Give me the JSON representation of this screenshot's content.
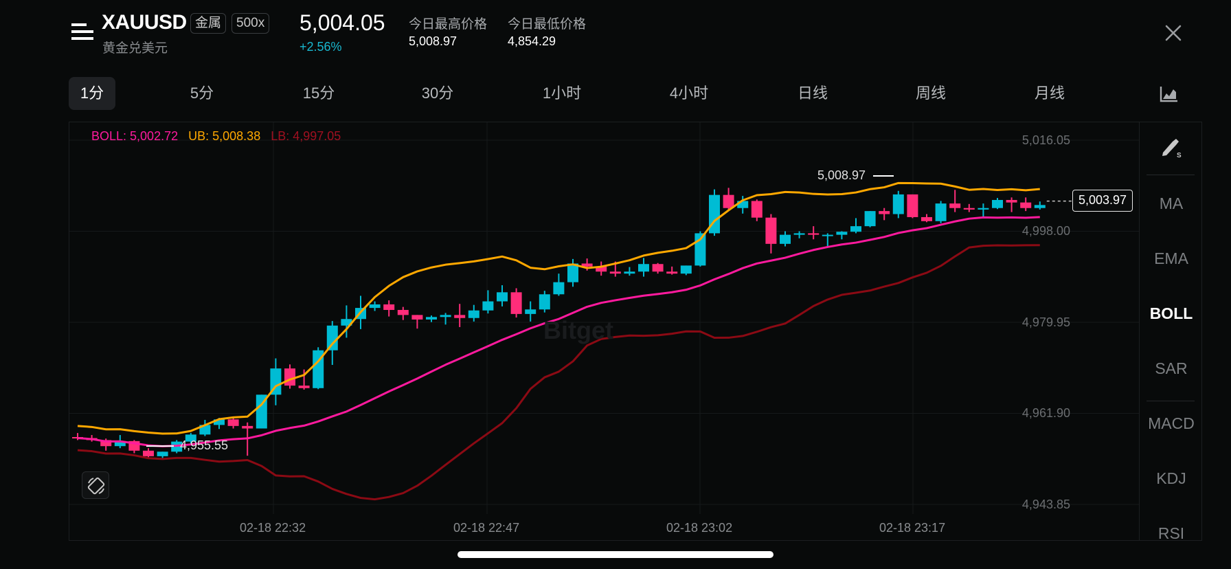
{
  "header": {
    "symbol": "XAUUSD",
    "tags": [
      "金属",
      "500x"
    ],
    "subname": "黄金兑美元",
    "last_price": "5,004.05",
    "change_pct": "+2.56%",
    "stats": [
      {
        "label": "今日最高价格",
        "value": "5,008.97"
      },
      {
        "label": "今日最低价格",
        "value": "4,854.29"
      }
    ]
  },
  "tabs": [
    {
      "label": "1分",
      "active": true
    },
    {
      "label": "5分"
    },
    {
      "label": "15分"
    },
    {
      "label": "30分"
    },
    {
      "label": "1小时"
    },
    {
      "label": "4小时"
    },
    {
      "label": "日线"
    },
    {
      "label": "周线"
    },
    {
      "label": "月线"
    }
  ],
  "legend": {
    "boll": "BOLL: 5,002.72",
    "ub": "UB: 5,008.38",
    "lb": "LB: 4,997.05"
  },
  "colors": {
    "up": "#00bcd4",
    "down": "#ff2d7a",
    "boll": "#ff1a9e",
    "ub": "#ffa800",
    "lb": "#8b0a14",
    "background": "#080a0a"
  },
  "sidebar": {
    "items": [
      "MA",
      "EMA",
      "BOLL",
      "SAR",
      "MACD",
      "KDJ",
      "RSI"
    ],
    "active": "BOLL"
  },
  "chart": {
    "last_price_badge": "5,003.97",
    "high_marker": "5,008.97",
    "low_marker": "4,955.55",
    "watermark": "Bitget",
    "y_ticks": [
      "5,016.05",
      "4,998.00",
      "4,979.95",
      "4,961.90",
      "4,943.85"
    ],
    "x_ticks": [
      "02-18 22:32",
      "02-18 22:47",
      "02-18 23:02",
      "02-18 23:17"
    ]
  },
  "chart_data": {
    "type": "candlestick",
    "title": "XAUUSD 1分",
    "xlabel": "",
    "ylabel": "",
    "ylim": [
      4940,
      5020
    ],
    "y_ticks": [
      5016.05,
      4998.0,
      4979.95,
      4961.9,
      4943.85
    ],
    "x_ticks": [
      "02-18 22:32",
      "02-18 22:47",
      "02-18 23:02",
      "02-18 23:17"
    ],
    "grid": true,
    "indicators": {
      "BOLL": 5002.72,
      "UB": 5008.38,
      "LB": 4997.05
    },
    "annotations": [
      {
        "label": "5,008.97",
        "type": "high"
      },
      {
        "label": "4,955.55",
        "type": "low"
      },
      {
        "label": "5,003.97",
        "type": "last"
      }
    ],
    "candles_ohlc": [
      [
        4957.2,
        4958.0,
        4956.6,
        4957.0
      ],
      [
        4957.0,
        4957.6,
        4956.3,
        4956.6
      ],
      [
        4956.6,
        4956.9,
        4954.5,
        4955.4
      ],
      [
        4955.4,
        4957.6,
        4955.0,
        4956.4
      ],
      [
        4956.4,
        4956.6,
        4954.0,
        4954.5
      ],
      [
        4954.5,
        4955.0,
        4953.2,
        4953.4
      ],
      [
        4953.4,
        4954.3,
        4953.0,
        4954.3
      ],
      [
        4954.3,
        4956.6,
        4954.0,
        4956.3
      ],
      [
        4956.3,
        4958.0,
        4955.7,
        4957.7
      ],
      [
        4957.7,
        4960.6,
        4957.4,
        4959.6
      ],
      [
        4959.6,
        4961.0,
        4958.8,
        4960.7
      ],
      [
        4960.7,
        4961.0,
        4958.9,
        4959.4
      ],
      [
        4959.4,
        4960.1,
        4953.5,
        4958.9
      ],
      [
        4958.9,
        4965.6,
        4958.9,
        4965.6
      ],
      [
        4965.6,
        4972.8,
        4963.5,
        4970.8
      ],
      [
        4970.8,
        4971.6,
        4966.8,
        4967.4
      ],
      [
        4967.4,
        4970.6,
        4966.6,
        4966.9
      ],
      [
        4966.9,
        4975.0,
        4966.7,
        4974.4
      ],
      [
        4974.4,
        4980.2,
        4971.5,
        4979.3
      ],
      [
        4979.3,
        4983.3,
        4976.9,
        4980.6
      ],
      [
        4980.6,
        4985.2,
        4978.6,
        4982.8
      ],
      [
        4982.8,
        4984.1,
        4982.2,
        4983.5
      ],
      [
        4983.5,
        4984.3,
        4981.1,
        4982.4
      ],
      [
        4982.4,
        4983.0,
        4980.4,
        4981.4
      ],
      [
        4981.4,
        4981.4,
        4978.7,
        4980.5
      ],
      [
        4980.5,
        4981.3,
        4980.0,
        4981.0
      ],
      [
        4981.0,
        4981.8,
        4979.5,
        4981.4
      ],
      [
        4981.4,
        4983.6,
        4979.0,
        4980.8
      ],
      [
        4980.8,
        4983.4,
        4980.1,
        4982.3
      ],
      [
        4982.3,
        4986.3,
        4981.7,
        4984.1
      ],
      [
        4984.1,
        4987.3,
        4983.1,
        4985.9
      ],
      [
        4985.9,
        4986.7,
        4980.9,
        4981.6
      ],
      [
        4981.6,
        4984.1,
        4980.1,
        4982.5
      ],
      [
        4982.5,
        4986.2,
        4981.9,
        4985.5
      ],
      [
        4985.5,
        4989.6,
        4985.2,
        4987.9
      ],
      [
        4987.9,
        4992.5,
        4987.0,
        4991.6
      ],
      [
        4991.6,
        4992.6,
        4990.2,
        4991.0
      ],
      [
        4991.0,
        4992.0,
        4989.2,
        4990.0
      ],
      [
        4990.0,
        4992.0,
        4989.0,
        4989.6
      ],
      [
        4989.6,
        4990.9,
        4989.2,
        4990.0
      ],
      [
        4990.0,
        4992.7,
        4989.0,
        4991.5
      ],
      [
        4991.5,
        4991.7,
        4989.6,
        4990.0
      ],
      [
        4990.0,
        4991.0,
        4989.4,
        4989.6
      ],
      [
        4989.6,
        4991.2,
        4989.3,
        4991.2
      ],
      [
        4991.2,
        4998.0,
        4991.0,
        4997.6
      ],
      [
        4997.6,
        5006.3,
        4997.1,
        5005.2
      ],
      [
        5005.2,
        5006.6,
        5002.0,
        5002.6
      ],
      [
        5002.6,
        5005.0,
        5001.5,
        5004.0
      ],
      [
        5004.0,
        5004.3,
        5000.0,
        5000.7
      ],
      [
        5000.7,
        5001.4,
        4993.6,
        4995.5
      ],
      [
        4995.5,
        4998.0,
        4995.0,
        4997.3
      ],
      [
        4997.3,
        4998.0,
        4996.6,
        4997.6
      ],
      [
        4997.6,
        4999.0,
        4996.4,
        4997.3
      ],
      [
        4997.3,
        4997.6,
        4995.0,
        4997.3
      ],
      [
        4997.3,
        4998.0,
        4996.4,
        4997.9
      ],
      [
        4997.9,
        5000.6,
        4997.6,
        4999.0
      ],
      [
        4999.0,
        5002.0,
        4998.8,
        5002.0
      ],
      [
        5002.0,
        5002.6,
        5000.2,
        5001.4
      ],
      [
        5001.4,
        5006.0,
        5000.6,
        5005.3
      ],
      [
        5005.3,
        5005.3,
        5000.6,
        5000.8
      ],
      [
        5000.8,
        5001.4,
        4999.8,
        5000.0
      ],
      [
        5000.0,
        5004.0,
        4999.6,
        5003.5
      ],
      [
        5003.5,
        5006.2,
        5001.8,
        5002.6
      ],
      [
        5002.6,
        5003.4,
        5001.8,
        5002.3
      ],
      [
        5002.3,
        5003.5,
        5000.6,
        5002.6
      ],
      [
        5002.6,
        5004.6,
        5002.4,
        5004.2
      ],
      [
        5004.2,
        5004.7,
        5001.8,
        5003.7
      ],
      [
        5003.7,
        5004.7,
        5002.0,
        5002.6
      ],
      [
        5002.6,
        5003.9,
        5002.3,
        5003.2
      ]
    ]
  }
}
